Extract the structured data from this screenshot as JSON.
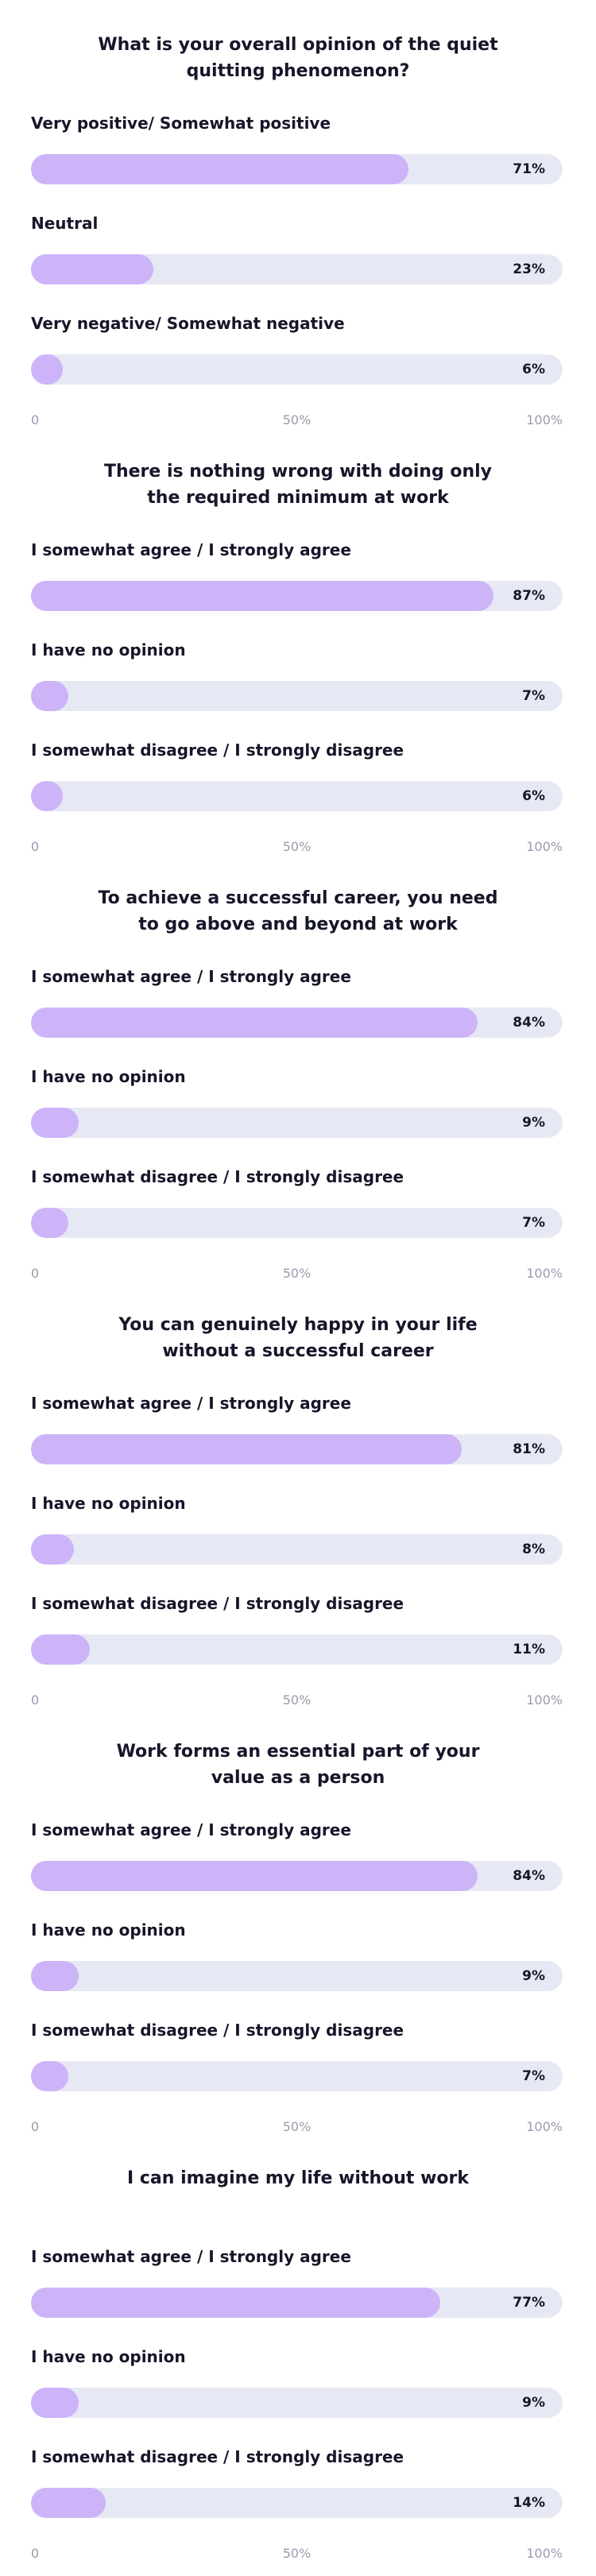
{
  "chart_data": [
    {
      "type": "bar",
      "orientation": "horizontal",
      "title": "What is your overall opinion of the quiet quitting phenomenon?",
      "categories": [
        "Very positive/ Somewhat positive",
        "Neutral",
        "Very negative/ Somewhat negative"
      ],
      "values": [
        71,
        23,
        6
      ],
      "value_labels": [
        "71%",
        "23%",
        "6%"
      ],
      "color": "#cdb4f9",
      "xlim": [
        0,
        100
      ],
      "xticks": [
        0,
        {
          "value": 50,
          "label": "50%"
        },
        {
          "value": 100,
          "label": "100%"
        }
      ]
    },
    {
      "type": "bar",
      "orientation": "horizontal",
      "title": "There is nothing wrong with doing only the required minimum at work",
      "categories": [
        "I somewhat agree / I strongly agree",
        "I have no opinion",
        "I somewhat disagree / I strongly disagree"
      ],
      "values": [
        87,
        7,
        6
      ],
      "value_labels": [
        "87%",
        "7%",
        "6%"
      ],
      "color": "#cdb4f9",
      "xlim": [
        0,
        100
      ],
      "xticks": [
        0,
        {
          "value": 50,
          "label": "50%"
        },
        {
          "value": 100,
          "label": "100%"
        }
      ]
    },
    {
      "type": "bar",
      "orientation": "horizontal",
      "title": "To achieve a successful career, you need to go above and beyond at work",
      "categories": [
        "I somewhat agree / I strongly agree",
        "I have no opinion",
        "I somewhat disagree / I strongly disagree"
      ],
      "values": [
        84,
        9,
        7
      ],
      "value_labels": [
        "84%",
        "9%",
        "7%"
      ],
      "color": "#cdb4f9",
      "xlim": [
        0,
        100
      ],
      "xticks": [
        0,
        {
          "value": 50,
          "label": "50%"
        },
        {
          "value": 100,
          "label": "100%"
        }
      ]
    },
    {
      "type": "bar",
      "orientation": "horizontal",
      "title": "You can genuinely happy in your life without a successful career",
      "categories": [
        "I somewhat agree / I strongly agree",
        "I have no opinion",
        "I somewhat disagree / I strongly disagree"
      ],
      "values": [
        81,
        8,
        11
      ],
      "value_labels": [
        "81%",
        "8%",
        "11%"
      ],
      "color": "#cdb4f9",
      "xlim": [
        0,
        100
      ],
      "xticks": [
        0,
        {
          "value": 50,
          "label": "50%"
        },
        {
          "value": 100,
          "label": "100%"
        }
      ]
    },
    {
      "type": "bar",
      "orientation": "horizontal",
      "title": "Work forms an essential part of your value as a person",
      "categories": [
        "I somewhat agree / I strongly agree",
        "I have no opinion",
        "I somewhat disagree / I strongly disagree"
      ],
      "values": [
        84,
        9,
        7
      ],
      "value_labels": [
        "84%",
        "9%",
        "7%"
      ],
      "color": "#cdb4f9",
      "xlim": [
        0,
        100
      ],
      "xticks": [
        0,
        {
          "value": 50,
          "label": "50%"
        },
        {
          "value": 100,
          "label": "100%"
        }
      ]
    },
    {
      "type": "bar",
      "orientation": "horizontal",
      "title": "I can imagine my life without work",
      "categories": [
        "I somewhat agree / I strongly agree",
        "I have no opinion",
        "I somewhat disagree / I strongly disagree"
      ],
      "values": [
        77,
        9,
        14
      ],
      "value_labels": [
        "77%",
        "9%",
        "14%"
      ],
      "color": "#cdb4f9",
      "xlim": [
        0,
        100
      ],
      "xticks": [
        0,
        {
          "value": 50,
          "label": "50%"
        },
        {
          "value": 100,
          "label": "100%"
        }
      ]
    }
  ]
}
